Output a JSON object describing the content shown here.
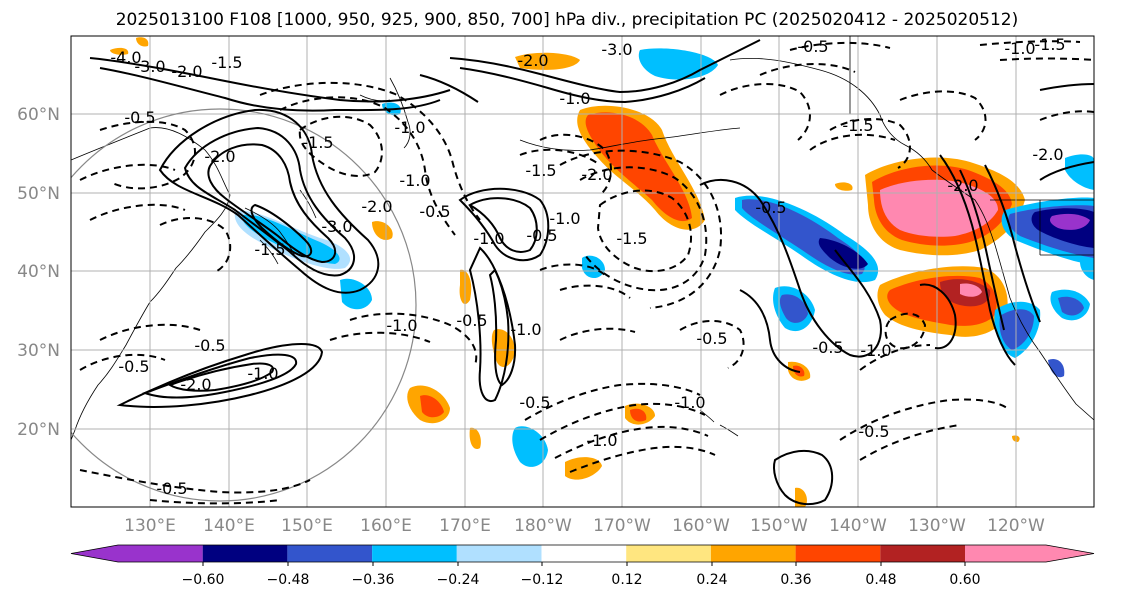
{
  "title": "2025013100 F108 [1000, 950, 925, 900, 850, 700] hPa div., precipitation PC (2025020412 - 2025020512)",
  "map": {
    "lat_labels": [
      "60°N",
      "50°N",
      "40°N",
      "30°N",
      "20°N"
    ],
    "lon_labels": [
      "130°E",
      "140°E",
      "150°E",
      "160°E",
      "170°E",
      "180°W",
      "170°W",
      "160°W",
      "150°W",
      "140°W",
      "130°W",
      "120°W"
    ],
    "contour_labels": [
      "-4.0",
      "-3.0",
      "-2.0",
      "-1.5",
      "-3.0",
      "-2.0",
      "-1.0",
      "-0.5",
      "-1.0",
      "-1.5",
      "-0.5",
      "-2.0",
      "-1.0",
      "-1.5",
      "-3.0",
      "-0.5",
      "-1.0",
      "-1.5",
      "-2.0",
      "-0.5",
      "-1.0",
      "-0.5",
      "-1.0",
      "-1.5",
      "-2.0",
      "-1.0",
      "-0.5",
      "-1.0",
      "-1.5",
      "-1.0",
      "-0.5",
      "-0.5",
      "-0.5",
      "-0.5",
      "-1.0",
      "-0.5",
      "-0.5",
      "-2.0",
      "-1.5",
      "-1.0",
      "-0.5",
      "-2.0",
      "-1.0",
      "-2.0"
    ],
    "grid": true
  },
  "colorbar": {
    "tick_labels": [
      "−0.60",
      "−0.48",
      "−0.36",
      "−0.24",
      "−0.12",
      "0.12",
      "0.24",
      "0.36",
      "0.48",
      "0.60"
    ],
    "colors": [
      "#9933cc",
      "#000080",
      "#3355cc",
      "#00bfff",
      "#b0e0ff",
      "#ffffff",
      "#ffe680",
      "#ffa500",
      "#ff4500",
      "#b22222",
      "#ff88b0"
    ]
  },
  "precip_colors": {
    "neg_light": "#b0e0ff",
    "neg_cyan": "#00bfff",
    "neg_blue": "#3355cc",
    "neg_navy": "#000080",
    "neg_purple": "#9933cc",
    "pos_yellow": "#ffe680",
    "pos_orange": "#ffa500",
    "pos_red": "#ff4500",
    "pos_darkred": "#b22222",
    "pos_pink": "#ff88b0"
  }
}
